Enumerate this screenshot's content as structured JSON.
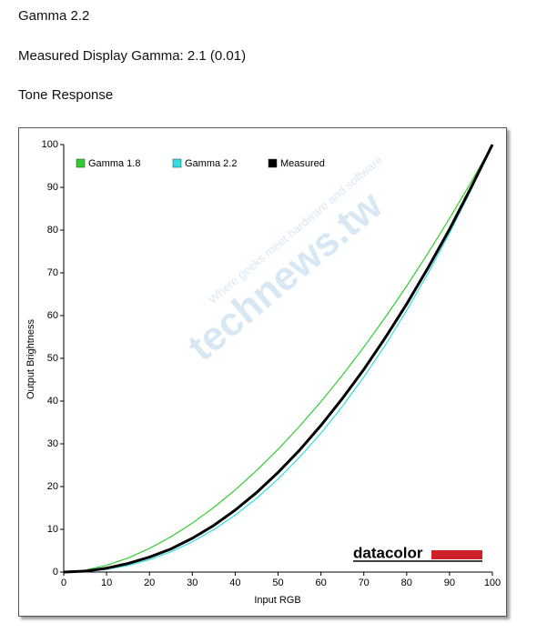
{
  "header": {
    "title": "Gamma 2.2",
    "measured": "Measured Display Gamma: 2.1 (0.01)",
    "section": "Tone Response"
  },
  "chart_data": {
    "type": "line",
    "x_label": "Input RGB",
    "y_label": "Output Brightness",
    "x": [
      0,
      5,
      10,
      15,
      20,
      25,
      30,
      35,
      40,
      45,
      50,
      55,
      60,
      65,
      70,
      75,
      80,
      85,
      90,
      95,
      100
    ],
    "series": [
      {
        "name": "Gamma 1.8",
        "color": "#33cc33",
        "values": [
          0,
          0.46,
          1.58,
          3.29,
          5.52,
          8.25,
          11.45,
          15.11,
          19.22,
          23.76,
          28.72,
          34.09,
          39.87,
          46.05,
          52.62,
          59.58,
          66.92,
          74.64,
          82.72,
          91.18,
          100
        ]
      },
      {
        "name": "Gamma 2.2",
        "color": "#33dddd",
        "values": [
          0,
          0.14,
          0.63,
          1.54,
          2.9,
          4.74,
          7.07,
          9.93,
          13.32,
          17.26,
          21.76,
          26.84,
          32.5,
          38.76,
          45.63,
          53.1,
          61.21,
          69.94,
          79.31,
          89.33,
          100
        ]
      },
      {
        "name": "Measured",
        "color": "#000000",
        "values": [
          0,
          0.2,
          0.9,
          2.0,
          3.5,
          5.4,
          7.9,
          10.9,
          14.5,
          18.6,
          23.3,
          28.5,
          34.3,
          40.6,
          47.4,
          54.8,
          62.7,
          71.2,
          80.2,
          89.9,
          100
        ]
      }
    ],
    "xlim": [
      0,
      100
    ],
    "xticks": [
      0,
      10,
      20,
      30,
      40,
      50,
      60,
      70,
      80,
      90,
      100
    ],
    "ylim": [
      0,
      100
    ],
    "yticks": [
      0,
      10,
      20,
      30,
      40,
      50,
      60,
      70,
      80,
      90,
      100
    ],
    "grid": false,
    "legend": "top-left",
    "watermark": "technews.tw",
    "watermark_tagline": "Where geeks meet hardware and software",
    "logo": "datacolor"
  }
}
